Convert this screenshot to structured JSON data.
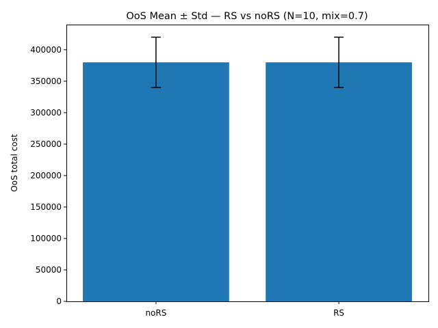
{
  "chart_data": {
    "type": "bar",
    "title": "OoS Mean ± Std — RS vs noRS (N=10, mix=0.7)",
    "xlabel": "",
    "ylabel": "OoS total cost",
    "categories": [
      "noRS",
      "RS"
    ],
    "values": [
      380000,
      380000
    ],
    "errors": [
      40000,
      40000
    ],
    "ylim": [
      0,
      440000
    ],
    "yticks": [
      0,
      50000,
      100000,
      150000,
      200000,
      250000,
      300000,
      350000,
      400000
    ],
    "bar_color": "#1f77b4",
    "error_color": "#000000",
    "grid": false,
    "legend": false
  }
}
